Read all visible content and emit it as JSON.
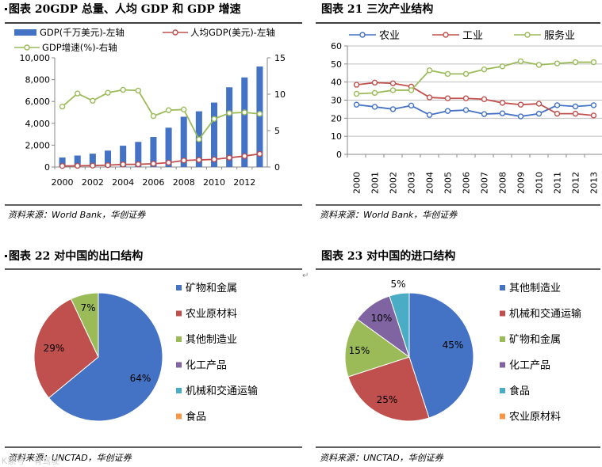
{
  "page": {
    "source_top": "资料来源：World Bank，华创证券",
    "source_bottom": "资料来源：UNCTAD，华创证券",
    "edit_mark": "↵",
    "watermark": "K家号　有驾驶",
    "rule_color": "#000000"
  },
  "colors": {
    "blue": "#4472C4",
    "blue_dark": "#2F5597",
    "red": "#C0504D",
    "green": "#9BBB59",
    "purple": "#8064A2",
    "teal": "#4BACC6",
    "orange": "#F79646",
    "gridline": "#BFBFBF"
  },
  "chart_data": [
    {
      "id": "fig20",
      "type": "bar+line",
      "title": "图表 20GDP 总量、人均 GDP 和 GDP 增速",
      "legend": [
        "GDP(千万美元)-左轴",
        "人均GDP(美元)-左轴",
        "GDP增速(%)-右轴"
      ],
      "x": [
        2000,
        2001,
        2002,
        2003,
        2004,
        2005,
        2006,
        2007,
        2008,
        2009,
        2010,
        2011,
        2012,
        2013
      ],
      "x_tick_labels": [
        "2000",
        "2002",
        "2004",
        "2006",
        "2008",
        "2010",
        "2012"
      ],
      "series": [
        {
          "name": "GDP(千万美元)-左轴",
          "type": "bar",
          "axis": "left",
          "values": [
            870,
            1050,
            1220,
            1500,
            1950,
            2300,
            2750,
            3600,
            4600,
            5100,
            5900,
            7300,
            8200,
            9200
          ]
        },
        {
          "name": "人均GDP(美元)-左轴",
          "type": "line",
          "axis": "left",
          "values": [
            95,
            110,
            130,
            170,
            240,
            250,
            300,
            400,
            600,
            650,
            700,
            850,
            1000,
            1200
          ]
        },
        {
          "name": "GDP增速(%)-右轴",
          "type": "line",
          "axis": "right",
          "values": [
            8.3,
            10.1,
            9.1,
            10.2,
            10.6,
            10.5,
            7.0,
            7.8,
            7.9,
            3.8,
            6.6,
            7.4,
            7.5,
            7.3
          ]
        }
      ],
      "y_left": {
        "min": 0,
        "max": 10000,
        "ticks": [
          "0",
          "2,000",
          "4,000",
          "6,000",
          "8,000",
          "10,000"
        ]
      },
      "y_right": {
        "min": 0,
        "max": 15,
        "ticks": [
          "0",
          "5",
          "10",
          "15"
        ]
      }
    },
    {
      "id": "fig21",
      "type": "line",
      "title": "图表 21 三次产业结构",
      "x": [
        "2000",
        "2001",
        "2002",
        "2003",
        "2004",
        "2005",
        "2006",
        "2007",
        "2008",
        "2009",
        "2010",
        "2011",
        "2012",
        "2013"
      ],
      "series": [
        {
          "name": "农业",
          "values": [
            27.5,
            26.3,
            25.0,
            27.0,
            21.8,
            24.0,
            24.5,
            22.3,
            22.7,
            21.0,
            22.5,
            27.2,
            26.5,
            27.2
          ]
        },
        {
          "name": "工业",
          "values": [
            38.5,
            39.7,
            39.3,
            37.5,
            31.5,
            31.0,
            31.0,
            30.5,
            28.5,
            27.5,
            28.0,
            22.5,
            22.5,
            21.5
          ]
        },
        {
          "name": "服务业",
          "values": [
            33.5,
            34.0,
            35.5,
            35.5,
            46.5,
            44.5,
            44.5,
            47.0,
            48.7,
            51.5,
            49.5,
            50.3,
            51.0,
            51.0
          ]
        }
      ],
      "ylim": [
        0,
        60
      ],
      "y_ticks": [
        "0",
        "10",
        "20",
        "30",
        "40",
        "50",
        "60"
      ]
    },
    {
      "id": "fig22",
      "type": "pie",
      "title": "图表 22 对中国的出口结构",
      "slices": [
        {
          "label": "矿物和金属",
          "value": 64,
          "text": "64%"
        },
        {
          "label": "农业原材料",
          "value": 29,
          "text": "29%"
        },
        {
          "label": "其他制造业",
          "value": 7,
          "text": "7%"
        },
        {
          "label": "化工产品",
          "value": 0,
          "text": ""
        },
        {
          "label": "机械和交通运输",
          "value": 0,
          "text": ""
        },
        {
          "label": "食品",
          "value": 0,
          "text": ""
        }
      ]
    },
    {
      "id": "fig23",
      "type": "pie",
      "title": "图表 23 对中国的进口结构",
      "slices": [
        {
          "label": "其他制造业",
          "value": 45,
          "text": "45%"
        },
        {
          "label": "机械和交通运输",
          "value": 25,
          "text": "25%"
        },
        {
          "label": "矿物和金属",
          "value": 15,
          "text": "15%"
        },
        {
          "label": "化工产品",
          "value": 10,
          "text": "10%"
        },
        {
          "label": "食品",
          "value": 5,
          "text": "5%"
        },
        {
          "label": "农业原材料",
          "value": 0,
          "text": ""
        }
      ]
    }
  ]
}
